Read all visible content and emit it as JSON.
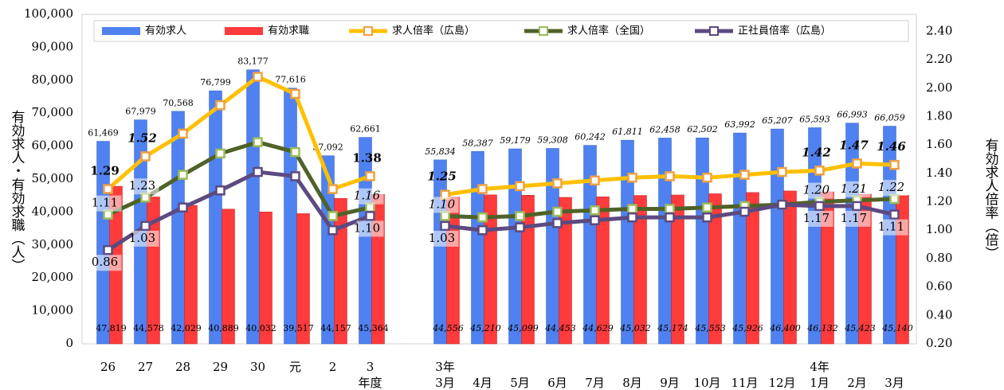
{
  "chart_data": {
    "type": "bar-line",
    "y_label": "有効求人・有効求職（人）",
    "y2_label": "有効求人倍率（倍）",
    "categories": [
      "26",
      "27",
      "28",
      "29",
      "30",
      "元",
      "2",
      "3",
      null,
      "3月",
      "4月",
      "5月",
      "6月",
      "7月",
      "8月",
      "9月",
      "10月",
      "11月",
      "12月",
      "1月",
      "2月",
      "3月"
    ],
    "sublabels": [
      null,
      null,
      null,
      null,
      null,
      null,
      null,
      "年度",
      null,
      "3年",
      null,
      null,
      null,
      null,
      null,
      null,
      null,
      null,
      null,
      "4年",
      null,
      null
    ],
    "ylim": [
      0,
      100000
    ],
    "yticks": [
      0,
      {
        "value": 10000,
        "label": "10,000"
      },
      {
        "value": 20000,
        "label": "20,000"
      },
      {
        "value": 30000,
        "label": "30,000"
      },
      {
        "value": 40000,
        "label": "40,000"
      },
      {
        "value": 50000,
        "label": "50,000"
      },
      {
        "value": 60000,
        "label": "60,000"
      },
      {
        "value": 70000,
        "label": "70,000"
      },
      {
        "value": 80000,
        "label": "80,000"
      },
      {
        "value": 90000,
        "label": "90,000"
      },
      {
        "value": 100000,
        "label": "100,000"
      }
    ],
    "y2lim": [
      0.2,
      2.52
    ],
    "y2ticks": [
      {
        "value": 0.2,
        "label": "0.20"
      },
      {
        "value": 0.4,
        "label": "0.40"
      },
      {
        "value": 0.6,
        "label": "0.60"
      },
      {
        "value": 0.8,
        "label": "0.80"
      },
      {
        "value": 1.0,
        "label": "1.00"
      },
      {
        "value": 1.2,
        "label": "1.20"
      },
      {
        "value": 1.4,
        "label": "1.40"
      },
      {
        "value": 1.6,
        "label": "1.60"
      },
      {
        "value": 1.8,
        "label": "1.80"
      },
      {
        "value": 2.0,
        "label": "2.00"
      },
      {
        "value": 2.2,
        "label": "2.20"
      },
      {
        "value": 2.4,
        "label": "2.40"
      }
    ],
    "series": [
      {
        "name": "有効求人",
        "kind": "bar",
        "color": "#4f81f0",
        "values": [
          61469,
          67979,
          70568,
          76799,
          83177,
          77616,
          57092,
          62661,
          null,
          55834,
          58387,
          59179,
          59308,
          60242,
          61811,
          62458,
          62502,
          63992,
          65207,
          65593,
          66993,
          66059
        ],
        "value_labels": [
          "61,469",
          "67,979",
          "70,568",
          "76,799",
          "83,177",
          "77,616",
          "57,092",
          "62,661",
          null,
          "55,834",
          "58,387",
          "59,179",
          "59,308",
          "60,242",
          "61,811",
          "62,458",
          "62,502",
          "63,992",
          "65,207",
          "65,593",
          "66,993",
          "66,059"
        ]
      },
      {
        "name": "有効求職",
        "kind": "bar",
        "color": "#ff3b3b",
        "values": [
          47819,
          44578,
          42029,
          40889,
          40032,
          39517,
          44157,
          45364,
          null,
          44556,
          45210,
          45099,
          44453,
          44629,
          45032,
          45174,
          45553,
          45926,
          46400,
          46132,
          45423,
          45140
        ],
        "value_labels": [
          "47,819",
          "44,578",
          "42,029",
          "40,889",
          "40,032",
          "39,517",
          "44,157",
          "45,364",
          null,
          "44,556",
          "45,210",
          "45,099",
          "44,453",
          "44,629",
          "45,032",
          "45,174",
          "45,553",
          "45,926",
          "46,400",
          "46,132",
          "45,423",
          "45,140"
        ]
      },
      {
        "name": "求人倍率（広島）",
        "kind": "line",
        "axis": "y2",
        "color": "#ffc000",
        "marker": "#f0a040",
        "values": [
          1.29,
          1.52,
          1.68,
          1.88,
          2.08,
          1.96,
          1.29,
          1.38,
          null,
          1.25,
          1.29,
          1.31,
          1.33,
          1.35,
          1.37,
          1.38,
          1.37,
          1.39,
          1.41,
          1.42,
          1.47,
          1.46
        ],
        "value_labels": [
          "1.29",
          "1.52",
          null,
          null,
          null,
          null,
          null,
          "1.38",
          null,
          "1.25",
          null,
          null,
          null,
          null,
          null,
          null,
          null,
          null,
          null,
          "1.42",
          "1.47",
          "1.46"
        ]
      },
      {
        "name": "求人倍率（全国）",
        "kind": "line",
        "axis": "y2",
        "color": "#4f6228",
        "marker": "#9bbb59",
        "values": [
          1.11,
          1.23,
          1.39,
          1.54,
          1.62,
          1.55,
          1.1,
          1.16,
          null,
          1.1,
          1.09,
          1.1,
          1.13,
          1.14,
          1.15,
          1.15,
          1.16,
          1.17,
          1.18,
          1.2,
          1.21,
          1.22
        ],
        "value_labels": [
          "1.11",
          "1.23",
          null,
          null,
          null,
          null,
          null,
          "1.16",
          null,
          "1.10",
          null,
          null,
          null,
          null,
          null,
          null,
          null,
          null,
          null,
          "1.20",
          "1.21",
          "1.22"
        ]
      },
      {
        "name": "正社員倍率（広島）",
        "kind": "line",
        "axis": "y2",
        "color": "#5c4a80",
        "marker": "#5c4a80",
        "values": [
          0.86,
          1.03,
          1.16,
          1.28,
          1.41,
          1.38,
          1.0,
          1.1,
          null,
          1.03,
          1.0,
          1.02,
          1.05,
          1.07,
          1.09,
          1.09,
          1.09,
          1.13,
          1.18,
          1.17,
          1.17,
          1.11
        ],
        "value_labels": [
          "0.86",
          "1.03",
          null,
          null,
          null,
          null,
          null,
          "1.10",
          null,
          "1.03",
          null,
          null,
          null,
          null,
          null,
          null,
          null,
          null,
          null,
          "1.17",
          "1.17",
          "1.11"
        ]
      }
    ]
  }
}
